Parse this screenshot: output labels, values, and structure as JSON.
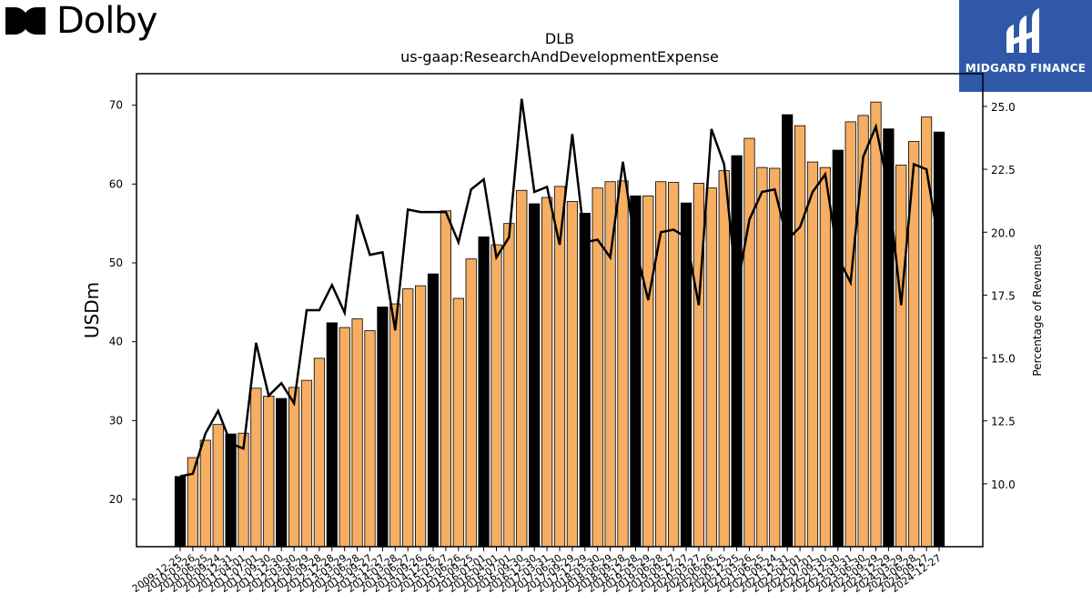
{
  "brand": {
    "name": "Dolby"
  },
  "partner": {
    "name": "MIDGARD FINANCE",
    "bg": "#2f59a8"
  },
  "chart_data": {
    "type": "bar",
    "title": "DLB",
    "subtitle": "us-gaap:ResearchAndDevelopmentExpense",
    "ylabel": "USDm",
    "y2label": "Percentage of Revenues",
    "ylim": [
      14,
      74
    ],
    "y2lim": [
      7.5,
      26.3
    ],
    "yticks": [
      20,
      30,
      40,
      50,
      60,
      70
    ],
    "y2ticks": [
      10.0,
      12.5,
      15.0,
      17.5,
      20.0,
      22.5,
      25.0
    ],
    "colors": {
      "annual_bar": "#000000",
      "quarter_bar": "#f6ae62",
      "line": "#000000"
    },
    "categories": [
      "2009-12-25",
      "2010-03-26",
      "2010-06-25",
      "2010-09-24",
      "2010-12-31",
      "2011-04-01",
      "2011-07-01",
      "2011-09-30",
      "2011-12-30",
      "2012-03-30",
      "2012-06-29",
      "2012-09-28",
      "2012-12-28",
      "2013-03-29",
      "2013-06-28",
      "2013-09-27",
      "2013-12-27",
      "2014-03-28",
      "2014-06-27",
      "2014-09-26",
      "2014-12-26",
      "2015-03-27",
      "2015-06-26",
      "2015-09-25",
      "2016-01-01",
      "2016-04-01",
      "2016-07-01",
      "2016-09-30",
      "2016-12-30",
      "2017-03-31",
      "2017-06-30",
      "2017-09-29",
      "2017-12-29",
      "2018-03-30",
      "2018-06-29",
      "2018-09-28",
      "2018-12-28",
      "2019-03-29",
      "2019-06-28",
      "2019-09-27",
      "2019-12-27",
      "2020-03-27",
      "2020-06-26",
      "2020-09-25",
      "2020-12-25",
      "2021-03-26",
      "2021-06-25",
      "2021-09-24",
      "2021-12-31",
      "2022-04-01",
      "2022-07-01",
      "2022-09-30",
      "2022-12-30",
      "2023-03-31",
      "2023-06-30",
      "2023-09-29",
      "2023-12-29",
      "2024-03-29",
      "2024-06-28",
      "2024-09-27",
      "2024-12-27"
    ],
    "series": [
      {
        "kind": "bar",
        "values": [
          22.9,
          25.3,
          27.5,
          29.5,
          28.3,
          28.4,
          34.1,
          33.1,
          32.8,
          34.2,
          35.1,
          37.9,
          42.4,
          41.8,
          42.9,
          41.4,
          44.4,
          44.8,
          46.7,
          47.1,
          48.6,
          56.6,
          45.5,
          50.5,
          53.3,
          52.3,
          55.0,
          59.2,
          57.5,
          58.3,
          59.7,
          57.8,
          56.3,
          59.5,
          60.3,
          60.4,
          58.5,
          58.5,
          60.3,
          60.2,
          57.6,
          60.1,
          59.5,
          61.7,
          63.6,
          65.8,
          62.1,
          62.0,
          68.8,
          67.4,
          62.8,
          62.1,
          64.3,
          67.9,
          68.7,
          70.4,
          67.0,
          62.4,
          65.4,
          68.5,
          66.6
        ],
        "annual": [
          true,
          false,
          false,
          false,
          true,
          false,
          false,
          false,
          true,
          false,
          false,
          false,
          true,
          false,
          false,
          false,
          true,
          false,
          false,
          false,
          true,
          false,
          false,
          false,
          true,
          false,
          false,
          false,
          true,
          false,
          false,
          false,
          true,
          false,
          false,
          false,
          true,
          false,
          false,
          false,
          true,
          false,
          false,
          false,
          true,
          false,
          false,
          false,
          true,
          false,
          false,
          false,
          true,
          false,
          false,
          false,
          true,
          false,
          false,
          false,
          true
        ]
      },
      {
        "kind": "line",
        "axis": "right",
        "values": [
          10.3,
          10.4,
          12.0,
          12.9,
          11.6,
          11.4,
          15.6,
          13.5,
          14.0,
          13.2,
          16.9,
          16.9,
          17.9,
          16.8,
          20.7,
          19.1,
          19.2,
          16.1,
          20.9,
          20.8,
          20.8,
          20.8,
          19.6,
          21.7,
          22.1,
          19.0,
          19.8,
          25.3,
          21.6,
          21.8,
          19.5,
          23.9,
          19.6,
          19.7,
          19.0,
          22.8,
          19.4,
          17.3,
          20.0,
          20.1,
          19.8,
          17.1,
          24.1,
          22.7,
          17.7,
          20.5,
          21.6,
          21.7,
          19.7,
          20.2,
          21.6,
          22.3,
          19.0,
          18.0,
          23.0,
          24.2,
          21.7,
          17.1,
          22.7,
          22.5,
          19.5
        ]
      }
    ]
  }
}
